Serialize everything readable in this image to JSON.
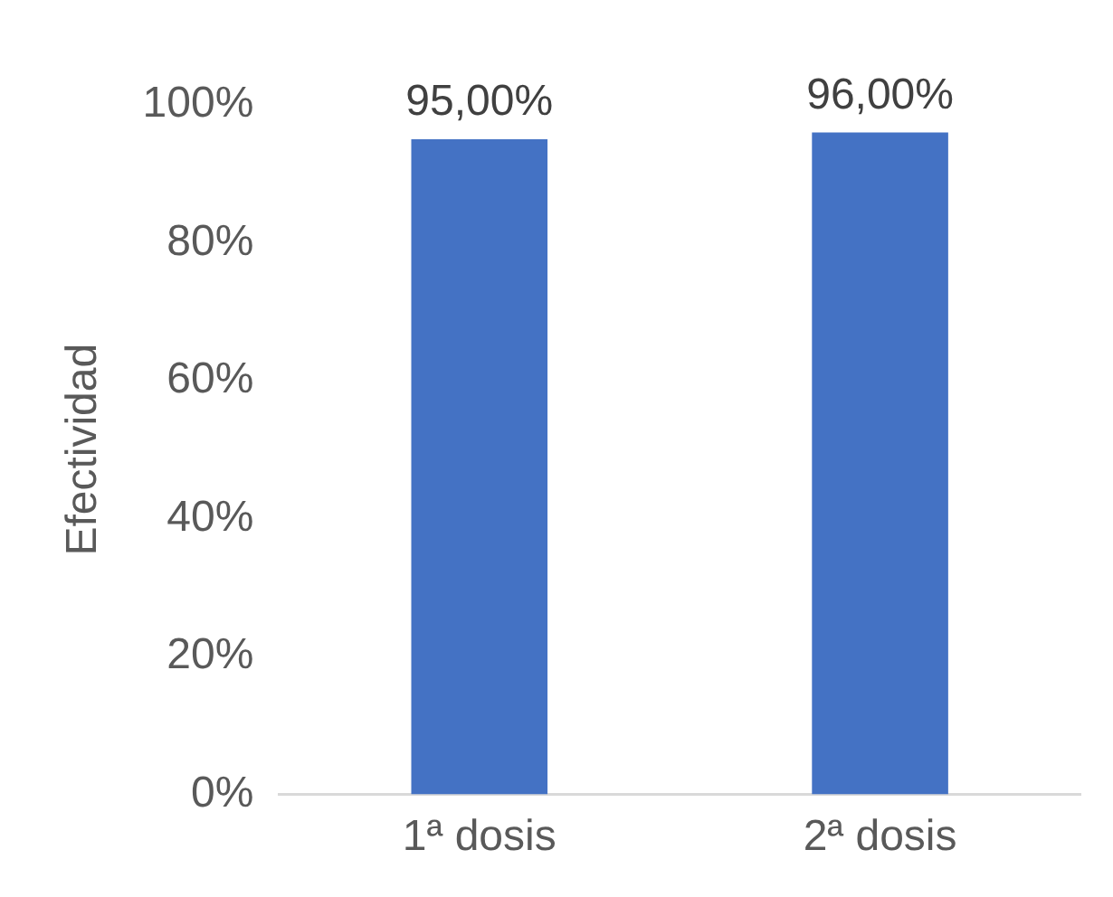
{
  "chart_data": {
    "type": "bar",
    "ylabel": "Efectividad",
    "categories": [
      "1ª dosis",
      "2ª dosis"
    ],
    "values": [
      95,
      96
    ],
    "color": "#4472c4",
    "value_labels": [
      "95,00%",
      "96,00%"
    ],
    "ylim": [
      0,
      100
    ],
    "yticks": [
      {
        "value": 0,
        "label": "0%"
      },
      {
        "value": 20,
        "label": "20%"
      },
      {
        "value": 40,
        "label": "40%"
      },
      {
        "value": 60,
        "label": "60%"
      },
      {
        "value": 80,
        "label": "80%"
      },
      {
        "value": 100,
        "label": "100%"
      }
    ]
  }
}
